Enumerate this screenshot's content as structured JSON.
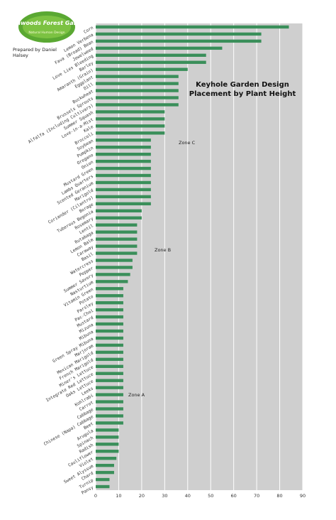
{
  "logo": {
    "name": "Southwoods Forest Gardens",
    "tagline": "Natural Human Design"
  },
  "credit": "Prepared by Daniel Halsey",
  "chart_data": {
    "type": "bar",
    "orientation": "horizontal",
    "title": "Keyhole Garden Design Placement by Plant Height",
    "categories": [
      "Corn",
      "Lemon Verbena",
      "Fava (Broad) Bean",
      "Jewelweed",
      "Love Lies Bleeding",
      "Barley",
      "Amaranth (Grain)",
      "Eggplant",
      "Dill",
      "Buckwheat",
      "Brussels Sprouts",
      "Alfalfa (Including Cultivars)",
      "Summer Squash",
      "Love-in-a-Mist",
      "Kale",
      "Broccoli",
      "Soybean",
      "Pumpkin",
      "Oregano",
      "Onion",
      "Mustard Green",
      "Lambs Quarters",
      "Scented Geranium",
      "Marigold",
      "Coriander (Cilantro)",
      "Borage",
      "Tuberous Begonia",
      "Rosemary",
      "Lentil",
      "Rutabaga",
      "Lemon Balm",
      "Caraway",
      "Basil",
      "Watercress",
      "Pepper",
      "Summer Savory",
      "Nasturtium",
      "Vitamin Green",
      "Potato",
      "Parsley",
      "Pac-Choi",
      "Mustard",
      "Mizuna",
      "Mibuna",
      "Green Spray Mibuna",
      "Marjoram",
      "Mexican Marigold",
      "French Marigold",
      "Miner's Lettuce",
      "Integrate Red Lettuce",
      "Oaks Lettuce",
      "Leeks",
      "Kohlrabi",
      "Carrot",
      "Cabbage",
      "Chinese (Napa) Cabbage",
      "Beet",
      "Arugula",
      "Spinach",
      "Radish",
      "Cauliflower",
      "Violet",
      "Sweet Alyssum",
      "Chard",
      "Turnip",
      "Pansy"
    ],
    "values": [
      84,
      72,
      72,
      55,
      48,
      48,
      40,
      36,
      36,
      36,
      36,
      36,
      30,
      30,
      30,
      30,
      24,
      24,
      24,
      24,
      24,
      24,
      24,
      24,
      24,
      24,
      20,
      20,
      18,
      18,
      18,
      18,
      18,
      16,
      16,
      15,
      14,
      12,
      12,
      12,
      12,
      12,
      12,
      12,
      12,
      12,
      12,
      12,
      12,
      12,
      12,
      12,
      12,
      12,
      12,
      12,
      12,
      10,
      10,
      10,
      10,
      9,
      8,
      8,
      6,
      6
    ],
    "color": "#3a8f5a",
    "xlim": [
      0,
      90
    ],
    "xticks": [
      0,
      10,
      20,
      30,
      40,
      50,
      60,
      70,
      80,
      90
    ],
    "grid": true,
    "annotations": [
      "Zone C",
      "Zone B",
      "Zone A"
    ]
  }
}
